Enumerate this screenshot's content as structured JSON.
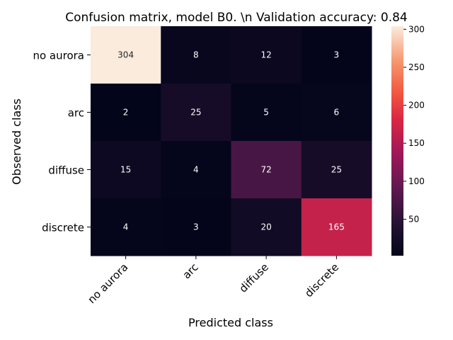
{
  "chart_data": {
    "type": "heatmap",
    "title": "Confusion matrix, model B0. \\n Validation accuracy: 0.84",
    "xlabel": "Predicted class",
    "ylabel": "Observed class",
    "x_categories": [
      "no aurora",
      "arc",
      "diffuse",
      "discrete"
    ],
    "y_categories": [
      "no aurora",
      "arc",
      "diffuse",
      "discrete"
    ],
    "values": [
      [
        304,
        8,
        12,
        3
      ],
      [
        2,
        25,
        5,
        6
      ],
      [
        15,
        4,
        72,
        25
      ],
      [
        4,
        3,
        20,
        165
      ]
    ],
    "colorbar": {
      "range": [
        2,
        304
      ],
      "ticks": [
        50,
        100,
        150,
        200,
        250,
        300
      ],
      "colormap": "rocket"
    },
    "grid": false,
    "legend": "none"
  }
}
